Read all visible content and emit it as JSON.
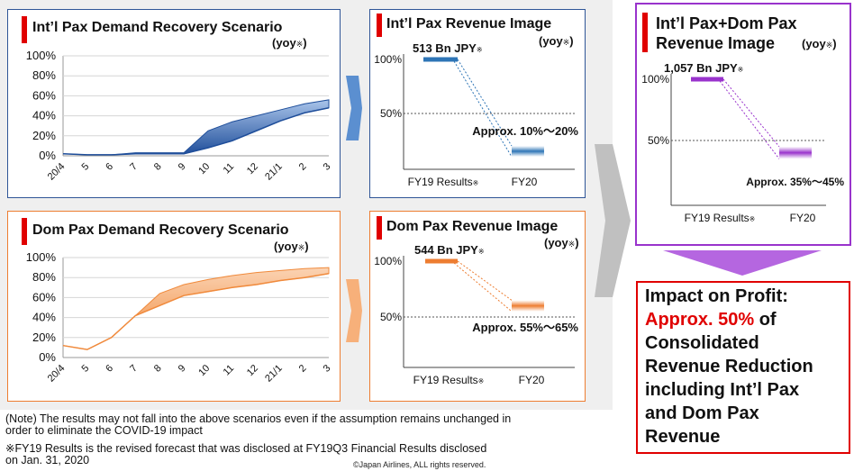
{
  "panels": {
    "intl_demand": {
      "title": "Int’l Pax Demand Recovery Scenario",
      "yoy": "(yoy",
      "yoy_mark": "※",
      "yoy_close": ")"
    },
    "intl_revenue": {
      "title": "Int’l Pax Revenue Image",
      "yoy": "(yoy",
      "yoy_mark": "※",
      "yoy_close": ")"
    },
    "dom_demand": {
      "title": "Dom Pax Demand Recovery Scenario",
      "yoy": "(yoy",
      "yoy_mark": "※",
      "yoy_close": ")"
    },
    "dom_revenue": {
      "title": "Dom Pax Revenue Image",
      "yoy": "(yoy",
      "yoy_mark": "※",
      "yoy_close": ")"
    },
    "total_revenue": {
      "title_line1": "Int’l Pax+Dom Pax",
      "title_line2": "Revenue Image",
      "yoy": "(yoy",
      "yoy_mark": "※",
      "yoy_close": ")"
    }
  },
  "impact": {
    "line1": "Impact on Profit:",
    "highlight": "Approx. 50%",
    "after_highlight": " of",
    "rest": [
      "Consolidated",
      "Revenue Reduction",
      "including Int’l Pax",
      "and Dom Pax",
      "Revenue"
    ]
  },
  "notes": {
    "note1_line1": "(Note) The results may not fall into the above scenarios even if the assumption remains unchanged  in",
    "note1_line2": "order to eliminate the COVID-19 impact",
    "note2_line1": "※FY19 Results is the revised forecast that was disclosed at FY19Q3 Financial Results disclosed",
    "note2_line2": "on Jan. 31, 2020",
    "copyright": "©Japan Airlines, ALL rights reserved."
  },
  "colors": {
    "intl": "#2e75b6",
    "intl_dark": "#1f4e9a",
    "dom": "#ed7d31",
    "dom_dark": "#f08a3c",
    "total": "#9933cc",
    "red": "#e00000",
    "arrow_blue": "#5b8fd0",
    "arrow_orange": "#f7b07a",
    "arrow_grey": "#c0c0c0",
    "arrow_purple": "#9933cc"
  },
  "chart_data": [
    {
      "id": "intl_demand",
      "type": "area",
      "title": "Int’l Pax Demand Recovery Scenario",
      "categories": [
        "20/4",
        "5",
        "6",
        "7",
        "8",
        "9",
        "10",
        "11",
        "12",
        "21/1",
        "2",
        "3"
      ],
      "y_ticks": [
        "100%",
        "80%",
        "60%",
        "40%",
        "20%",
        "0%"
      ],
      "ylim": [
        0,
        100
      ],
      "lower": [
        2,
        1,
        1,
        2,
        2,
        2,
        8,
        15,
        25,
        35,
        43,
        48
      ],
      "upper": [
        2,
        1,
        1,
        3,
        3,
        3,
        25,
        34,
        40,
        46,
        52,
        56
      ]
    },
    {
      "id": "intl_revenue",
      "type": "bar",
      "categories": [
        "FY19 Results",
        "FY20"
      ],
      "category_marks": [
        "※",
        ""
      ],
      "y_ticks": [
        "100%",
        "50%"
      ],
      "ylim": [
        0,
        100
      ],
      "fy19_value": 100,
      "fy20_range": [
        10,
        20
      ],
      "fy19_label": "513 Bn JPY",
      "fy19_label_mark": "※",
      "fy20_label": "Approx. 10%～20%"
    },
    {
      "id": "dom_demand",
      "type": "area",
      "title": "Dom Pax Demand Recovery Scenario",
      "categories": [
        "20/4",
        "5",
        "6",
        "7",
        "8",
        "9",
        "10",
        "11",
        "12",
        "21/1",
        "2",
        "3"
      ],
      "y_ticks": [
        "100%",
        "80%",
        "60%",
        "40%",
        "20%",
        "0%"
      ],
      "ylim": [
        0,
        100
      ],
      "lower": [
        12,
        8,
        20,
        42,
        52,
        62,
        66,
        70,
        73,
        77,
        80,
        84
      ],
      "upper": [
        12,
        8,
        20,
        42,
        64,
        73,
        78,
        82,
        85,
        87,
        89,
        90
      ]
    },
    {
      "id": "dom_revenue",
      "type": "bar",
      "categories": [
        "FY19 Results",
        "FY20"
      ],
      "category_marks": [
        "※",
        ""
      ],
      "y_ticks": [
        "100%",
        "50%"
      ],
      "ylim": [
        0,
        100
      ],
      "fy19_value": 100,
      "fy20_range": [
        55,
        65
      ],
      "fy19_label": "544 Bn JPY",
      "fy19_label_mark": "※",
      "fy20_label": "Approx. 55%～65%"
    },
    {
      "id": "total_revenue",
      "type": "bar",
      "categories": [
        "FY19 Results",
        "FY20"
      ],
      "category_marks": [
        "※",
        ""
      ],
      "y_ticks": [
        "100%",
        "50%"
      ],
      "ylim": [
        0,
        100
      ],
      "fy19_value": 100,
      "fy20_range": [
        35,
        45
      ],
      "fy19_label": "1,057 Bn JPY",
      "fy19_label_mark": "※",
      "fy20_label": "Approx. 35%～45%"
    }
  ]
}
